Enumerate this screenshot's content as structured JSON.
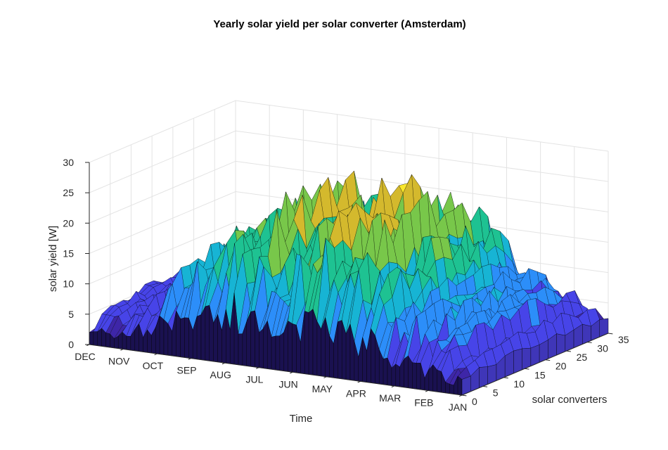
{
  "chart_data": {
    "type": "surface",
    "title": "Yearly solar yield per solar converter (Amsterdam)",
    "xlabel": "Time",
    "ylabel": "solar converters",
    "zlabel": "solar yield [W]",
    "time_ticks": [
      "JAN",
      "FEB",
      "MAR",
      "APR",
      "MAY",
      "JUN",
      "JUL",
      "AUG",
      "SEP",
      "OCT",
      "NOV",
      "DEC"
    ],
    "converter_ticks": [
      "0",
      "5",
      "10",
      "15",
      "20",
      "25",
      "30",
      "35"
    ],
    "zticks": [
      "0",
      "5",
      "10",
      "15",
      "20",
      "25",
      "30"
    ],
    "zlim": [
      0,
      30
    ],
    "converter_range": [
      0,
      35
    ],
    "grid": true,
    "colormap": "parula",
    "colors": [
      "#3e26a8",
      "#4744e8",
      "#2c8ef9",
      "#17b4d4",
      "#1ec292",
      "#78c74a",
      "#d4b92d",
      "#f9e72a"
    ],
    "monthly_peak_yield": [
      {
        "month": "JAN",
        "value": 6
      },
      {
        "month": "FEB",
        "value": 10
      },
      {
        "month": "MAR",
        "value": 16
      },
      {
        "month": "APR",
        "value": 22
      },
      {
        "month": "MAY",
        "value": 26
      },
      {
        "month": "JUN",
        "value": 27
      },
      {
        "month": "JUL",
        "value": 26
      },
      {
        "month": "AUG",
        "value": 23
      },
      {
        "month": "SEP",
        "value": 18
      },
      {
        "month": "OCT",
        "value": 13
      },
      {
        "month": "NOV",
        "value": 9
      },
      {
        "month": "DEC",
        "value": 6
      }
    ]
  }
}
